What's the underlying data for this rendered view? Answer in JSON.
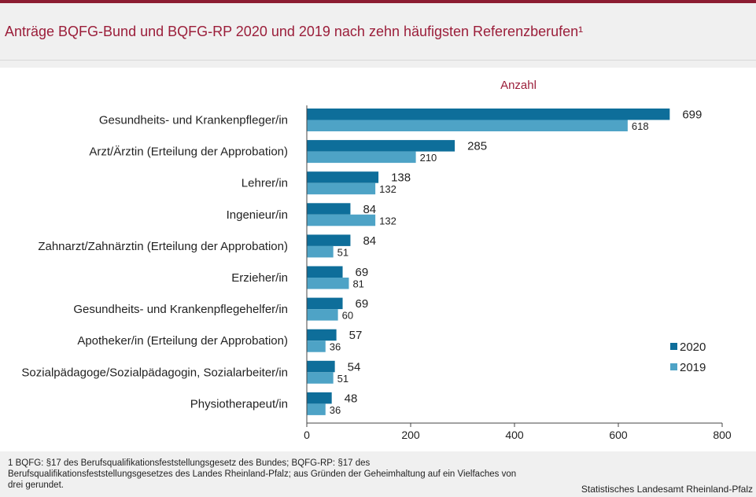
{
  "title": "Anträge BQFG-Bund und BQFG-RP 2020 und 2019 nach zehn häufigsten Referenzberufen¹",
  "footnote": "1  BQFG: §17 des Berufsqualifikationsfeststellungsgesetz  des Bundes;  BQFG-RP: §17 des Berufsqualifikationsfeststellungsgesetzes  des Landes Rheinland-Pfalz;  aus Gründen  der Geheimhaltung auf ein Vielfaches von drei gerundet.",
  "source": "Statistisches Landesamt Rheinland-Pfalz",
  "colors": {
    "2020": "#0e6e9a",
    "2019": "#4ea3c6",
    "title": "#9b1e3a"
  },
  "chart_data": {
    "type": "bar",
    "orientation": "horizontal",
    "title": "Anträge BQFG-Bund und BQFG-RP 2020 und 2019 nach zehn häufigsten Referenzberufen¹",
    "xlabel": "Anzahl",
    "ylabel": "",
    "xlim": [
      0,
      800
    ],
    "xticks": [
      0,
      200,
      400,
      600,
      800
    ],
    "grid": false,
    "legend": "bottom-right",
    "categories": [
      "Gesundheits- und Krankenpfleger/in",
      "Arzt/Ärztin (Erteilung der Approbation)",
      "Lehrer/in",
      "Ingenieur/in",
      "Zahnarzt/Zahnärztin (Erteilung der Approbation)",
      "Erzieher/in",
      "Gesundheits- und Krankenpflegehelfer/in",
      "Apotheker/in (Erteilung der Approbation)",
      "Sozialpädagoge/Sozialpädagogin, Sozialarbeiter/in",
      "Physiotherapeut/in"
    ],
    "series": [
      {
        "name": "2020",
        "color": "#0e6e9a",
        "values": [
          699,
          285,
          138,
          84,
          84,
          69,
          69,
          57,
          54,
          48
        ]
      },
      {
        "name": "2019",
        "color": "#4ea3c6",
        "values": [
          618,
          210,
          132,
          132,
          51,
          81,
          60,
          36,
          51,
          36
        ]
      }
    ]
  }
}
